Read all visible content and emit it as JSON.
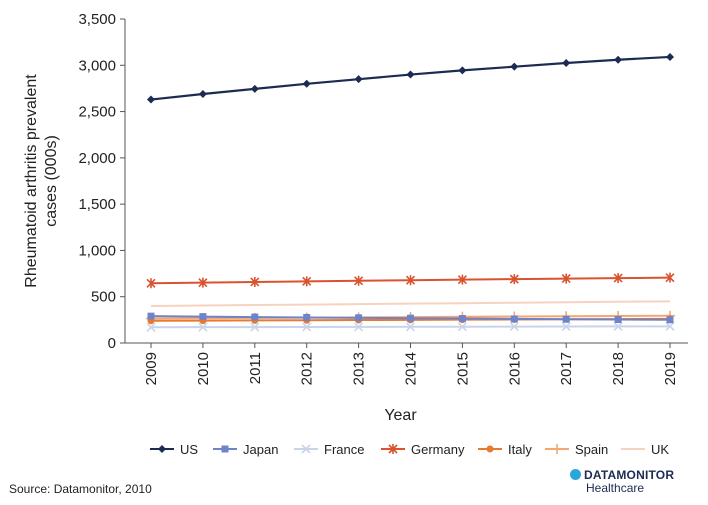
{
  "chart_data": {
    "type": "line",
    "title": "",
    "xlabel": "Year",
    "ylabel": "Rheumatoid arthritis prevalent cases (000s)",
    "ylabel_lines": [
      "Rheumatoid arthritis prevalent",
      "cases (000s)"
    ],
    "ylim": [
      0,
      3500
    ],
    "yticks": [
      0,
      500,
      1000,
      1500,
      2000,
      2500,
      3000,
      3500
    ],
    "ytick_labels": [
      "0",
      "500",
      "1,000",
      "1,500",
      "2,000",
      "2,500",
      "3,000",
      "3,500"
    ],
    "categories": [
      "2009",
      "2010",
      "2011",
      "2012",
      "2013",
      "2014",
      "2015",
      "2016",
      "2017",
      "2018",
      "2019"
    ],
    "grid": false,
    "legend_position": "bottom",
    "series": [
      {
        "name": "US",
        "color": "#1c2b52",
        "marker": "diamond",
        "values": [
          2630,
          2690,
          2745,
          2800,
          2850,
          2900,
          2945,
          2985,
          3025,
          3060,
          3090
        ]
      },
      {
        "name": "Japan",
        "color": "#6f83c9",
        "marker": "square",
        "values": [
          290,
          285,
          280,
          276,
          272,
          268,
          264,
          260,
          257,
          254,
          251
        ]
      },
      {
        "name": "France",
        "color": "#c9d3ea",
        "marker": "x",
        "values": [
          170,
          171,
          172,
          173,
          174,
          175,
          176,
          177,
          178,
          179,
          180
        ]
      },
      {
        "name": "Germany",
        "color": "#d8532e",
        "marker": "asterisk",
        "values": [
          645,
          652,
          659,
          666,
          672,
          678,
          684,
          690,
          696,
          701,
          706
        ]
      },
      {
        "name": "Italy",
        "color": "#e87a30",
        "marker": "circle",
        "values": [
          240,
          242,
          244,
          246,
          248,
          250,
          252,
          254,
          256,
          258,
          260
        ]
      },
      {
        "name": "Spain",
        "color": "#f3a873",
        "marker": "plus",
        "values": [
          265,
          268,
          271,
          274,
          277,
          280,
          283,
          286,
          289,
          292,
          295
        ]
      },
      {
        "name": "UK",
        "color": "#f6d3bf",
        "marker": "none",
        "values": [
          400,
          405,
          410,
          415,
          420,
          425,
          430,
          435,
          440,
          445,
          450
        ]
      }
    ]
  },
  "footer": {
    "source": "Source: Datamonitor, 2010",
    "brand_name": "DATAMONITOR",
    "brand_sub": "Healthcare",
    "brand_icon": "datamonitor-logo-icon"
  }
}
